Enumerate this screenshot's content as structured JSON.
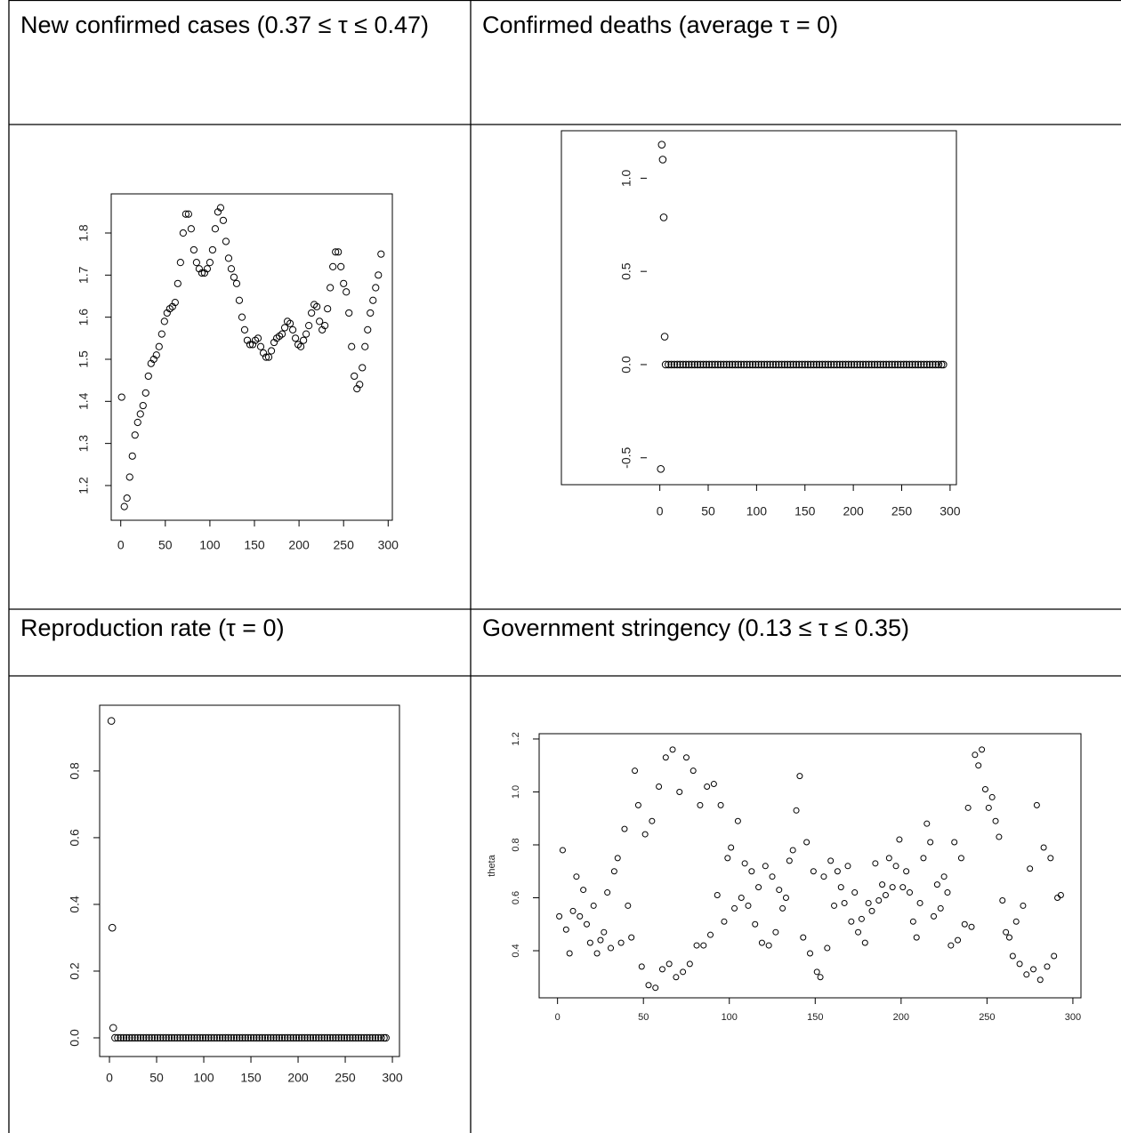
{
  "table": {
    "cells": [
      "New confirmed cases (0.37 ≤ τ ≤ 0.47)",
      "Confirmed deaths (average τ = 0)",
      "Reproduction rate (τ = 0)",
      "Government stringency (0.13 ≤ τ ≤ 0.35)"
    ]
  },
  "chart_data": [
    {
      "type": "scatter",
      "x": [
        1,
        4,
        7,
        10,
        13,
        16,
        19,
        22,
        25,
        28,
        31,
        34,
        37,
        40,
        43,
        46,
        49,
        52,
        55,
        58,
        61,
        64,
        67,
        70,
        73,
        76,
        79,
        82,
        85,
        88,
        91,
        94,
        97,
        100,
        103,
        106,
        109,
        112,
        115,
        118,
        121,
        124,
        127,
        130,
        133,
        136,
        139,
        142,
        145,
        148,
        151,
        154,
        157,
        160,
        163,
        166,
        169,
        172,
        175,
        178,
        181,
        184,
        187,
        190,
        193,
        196,
        199,
        202,
        205,
        208,
        211,
        214,
        217,
        220,
        223,
        226,
        229,
        232,
        235,
        238,
        241,
        244,
        247,
        250,
        253,
        256,
        259,
        262,
        265,
        268,
        271,
        274,
        277,
        280,
        283,
        286,
        289,
        292
      ],
      "values": [
        1.41,
        1.15,
        1.17,
        1.22,
        1.27,
        1.32,
        1.35,
        1.37,
        1.39,
        1.42,
        1.46,
        1.49,
        1.5,
        1.51,
        1.53,
        1.56,
        1.59,
        1.61,
        1.62,
        1.625,
        1.635,
        1.68,
        1.73,
        1.8,
        1.845,
        1.845,
        1.81,
        1.76,
        1.73,
        1.715,
        1.705,
        1.705,
        1.715,
        1.73,
        1.76,
        1.81,
        1.85,
        1.86,
        1.83,
        1.78,
        1.74,
        1.715,
        1.695,
        1.68,
        1.64,
        1.6,
        1.57,
        1.545,
        1.535,
        1.535,
        1.545,
        1.55,
        1.53,
        1.515,
        1.505,
        1.505,
        1.52,
        1.54,
        1.55,
        1.555,
        1.56,
        1.575,
        1.59,
        1.585,
        1.57,
        1.55,
        1.535,
        1.53,
        1.545,
        1.56,
        1.58,
        1.61,
        1.63,
        1.625,
        1.59,
        1.57,
        1.58,
        1.62,
        1.67,
        1.72,
        1.755,
        1.755,
        1.72,
        1.68,
        1.66,
        1.61,
        1.53,
        1.46,
        1.43,
        1.44,
        1.48,
        1.53,
        1.57,
        1.61,
        1.64,
        1.67,
        1.7,
        1.75
      ],
      "xlim": [
        -10.7,
        304.7
      ],
      "ylim": [
        1.1175,
        1.893
      ],
      "xticks": [
        0,
        50,
        100,
        150,
        200,
        250,
        300
      ],
      "yticks": [
        1.2,
        1.3,
        1.4,
        1.5,
        1.6,
        1.7,
        1.8
      ]
    },
    {
      "type": "scatter",
      "x": [
        1,
        2,
        3,
        4,
        5,
        6,
        9,
        12,
        15,
        18,
        21,
        24,
        27,
        30,
        33,
        36,
        39,
        42,
        45,
        48,
        51,
        54,
        57,
        60,
        63,
        66,
        69,
        72,
        75,
        78,
        81,
        84,
        87,
        90,
        93,
        96,
        99,
        102,
        105,
        108,
        111,
        114,
        117,
        120,
        123,
        126,
        129,
        132,
        135,
        138,
        141,
        144,
        147,
        150,
        153,
        156,
        159,
        162,
        165,
        168,
        171,
        174,
        177,
        180,
        183,
        186,
        189,
        192,
        195,
        198,
        201,
        204,
        207,
        210,
        213,
        216,
        219,
        222,
        225,
        228,
        231,
        234,
        237,
        240,
        243,
        246,
        249,
        252,
        255,
        258,
        261,
        264,
        267,
        270,
        273,
        276,
        279,
        282,
        285,
        288,
        291,
        293
      ],
      "values": [
        -0.56,
        1.18,
        1.1,
        0.79,
        0.15,
        0,
        0,
        0,
        0,
        0,
        0,
        0,
        0,
        0,
        0,
        0,
        0,
        0,
        0,
        0,
        0,
        0,
        0,
        0,
        0,
        0,
        0,
        0,
        0,
        0,
        0,
        0,
        0,
        0,
        0,
        0,
        0,
        0,
        0,
        0,
        0,
        0,
        0,
        0,
        0,
        0,
        0,
        0,
        0,
        0,
        0,
        0,
        0,
        0,
        0,
        0,
        0,
        0,
        0,
        0,
        0,
        0,
        0,
        0,
        0,
        0,
        0,
        0,
        0,
        0,
        0,
        0,
        0,
        0,
        0,
        0,
        0,
        0,
        0,
        0,
        0,
        0,
        0,
        0,
        0,
        0,
        0,
        0,
        0,
        0,
        0,
        0,
        0,
        0,
        0,
        0,
        0,
        0,
        0,
        0,
        0,
        0
      ],
      "xlim": [
        -10.7,
        304.7
      ],
      "ylim": [
        -0.63,
        1.25
      ],
      "xticks": [
        0,
        50,
        100,
        150,
        200,
        250,
        300
      ],
      "yticks": [
        {
          "value": -0.5,
          "label": "-0.5"
        },
        {
          "value": 0,
          "label": "0.0"
        },
        0.5,
        {
          "value": 1,
          "label": "1.0"
        }
      ]
    },
    {
      "type": "scatter",
      "x": [
        2,
        3,
        4,
        6,
        9,
        12,
        15,
        18,
        21,
        24,
        27,
        30,
        33,
        36,
        39,
        42,
        45,
        48,
        51,
        54,
        57,
        60,
        63,
        66,
        69,
        72,
        75,
        78,
        81,
        84,
        87,
        90,
        93,
        96,
        99,
        102,
        105,
        108,
        111,
        114,
        117,
        120,
        123,
        126,
        129,
        132,
        135,
        138,
        141,
        144,
        147,
        150,
        153,
        156,
        159,
        162,
        165,
        168,
        171,
        174,
        177,
        180,
        183,
        186,
        189,
        192,
        195,
        198,
        201,
        204,
        207,
        210,
        213,
        216,
        219,
        222,
        225,
        228,
        231,
        234,
        237,
        240,
        243,
        246,
        249,
        252,
        255,
        258,
        261,
        264,
        267,
        270,
        273,
        276,
        279,
        282,
        285,
        288,
        291,
        293
      ],
      "values": [
        0.95,
        0.33,
        0.03,
        0,
        0,
        0,
        0,
        0,
        0,
        0,
        0,
        0,
        0,
        0,
        0,
        0,
        0,
        0,
        0,
        0,
        0,
        0,
        0,
        0,
        0,
        0,
        0,
        0,
        0,
        0,
        0,
        0,
        0,
        0,
        0,
        0,
        0,
        0,
        0,
        0,
        0,
        0,
        0,
        0,
        0,
        0,
        0,
        0,
        0,
        0,
        0,
        0,
        0,
        0,
        0,
        0,
        0,
        0,
        0,
        0,
        0,
        0,
        0,
        0,
        0,
        0,
        0,
        0,
        0,
        0,
        0,
        0,
        0,
        0,
        0,
        0,
        0,
        0,
        0,
        0,
        0,
        0,
        0,
        0,
        0,
        0,
        0,
        0,
        0,
        0,
        0,
        0,
        0,
        0,
        0,
        0,
        0,
        0,
        0,
        0
      ],
      "xlim": [
        -10.4,
        307.5
      ],
      "ylim": [
        -0.056,
        0.997
      ],
      "xticks": [
        0,
        50,
        100,
        150,
        200,
        250,
        300
      ],
      "yticks": [
        {
          "value": 0,
          "label": "0.0"
        },
        0.2,
        0.4,
        0.6,
        0.8
      ]
    },
    {
      "type": "scatter",
      "ylabel": "theta",
      "x": [
        1,
        3,
        5,
        7,
        9,
        11,
        13,
        15,
        17,
        19,
        21,
        23,
        25,
        27,
        29,
        31,
        33,
        35,
        37,
        39,
        41,
        43,
        45,
        47,
        49,
        51,
        53,
        55,
        57,
        59,
        61,
        63,
        65,
        67,
        69,
        71,
        73,
        75,
        77,
        79,
        81,
        83,
        85,
        87,
        89,
        91,
        93,
        95,
        97,
        99,
        101,
        103,
        105,
        107,
        109,
        111,
        113,
        115,
        117,
        119,
        121,
        123,
        125,
        127,
        129,
        131,
        133,
        135,
        137,
        139,
        141,
        143,
        145,
        147,
        149,
        151,
        153,
        155,
        157,
        159,
        161,
        163,
        165,
        167,
        169,
        171,
        173,
        175,
        177,
        179,
        181,
        183,
        185,
        187,
        189,
        191,
        193,
        195,
        197,
        199,
        201,
        203,
        205,
        207,
        209,
        211,
        213,
        215,
        217,
        219,
        221,
        223,
        225,
        227,
        229,
        231,
        233,
        235,
        237,
        239,
        241,
        243,
        245,
        247,
        249,
        251,
        253,
        255,
        257,
        259,
        261,
        263,
        265,
        267,
        269,
        271,
        273,
        275,
        277,
        279,
        281,
        283,
        285,
        287,
        289,
        291,
        293
      ],
      "values": [
        0.53,
        0.78,
        0.48,
        0.39,
        0.55,
        0.68,
        0.53,
        0.63,
        0.5,
        0.43,
        0.57,
        0.39,
        0.44,
        0.47,
        0.62,
        0.41,
        0.7,
        0.75,
        0.43,
        0.86,
        0.57,
        0.45,
        1.08,
        0.95,
        0.34,
        0.84,
        0.27,
        0.89,
        0.26,
        1.02,
        0.33,
        1.13,
        0.35,
        1.16,
        0.3,
        1.0,
        0.32,
        1.13,
        0.35,
        1.08,
        0.42,
        0.95,
        0.42,
        1.02,
        0.46,
        1.03,
        0.61,
        0.95,
        0.51,
        0.75,
        0.79,
        0.56,
        0.89,
        0.6,
        0.73,
        0.57,
        0.7,
        0.5,
        0.64,
        0.43,
        0.72,
        0.42,
        0.68,
        0.47,
        0.63,
        0.56,
        0.6,
        0.74,
        0.78,
        0.93,
        1.06,
        0.45,
        0.81,
        0.39,
        0.7,
        0.32,
        0.3,
        0.68,
        0.41,
        0.74,
        0.57,
        0.7,
        0.64,
        0.58,
        0.72,
        0.51,
        0.62,
        0.47,
        0.52,
        0.43,
        0.58,
        0.55,
        0.73,
        0.59,
        0.65,
        0.61,
        0.75,
        0.64,
        0.72,
        0.82,
        0.64,
        0.7,
        0.62,
        0.51,
        0.45,
        0.58,
        0.75,
        0.88,
        0.81,
        0.53,
        0.65,
        0.56,
        0.68,
        0.62,
        0.42,
        0.81,
        0.44,
        0.75,
        0.5,
        0.94,
        0.49,
        1.14,
        1.1,
        1.16,
        1.01,
        0.94,
        0.98,
        0.89,
        0.83,
        0.59,
        0.47,
        0.45,
        0.38,
        0.51,
        0.35,
        0.57,
        0.31,
        0.71,
        0.33,
        0.95,
        0.29,
        0.79,
        0.34,
        0.75,
        0.38,
        0.6,
        0.61
      ],
      "xlim": [
        -10.7,
        304.7
      ],
      "ylim": [
        0.222,
        1.22
      ],
      "xticks": [
        0,
        50,
        100,
        150,
        200,
        250,
        300
      ],
      "yticks": [
        0.4,
        0.6,
        0.8,
        {
          "value": 1,
          "label": "1.0"
        },
        1.2
      ]
    }
  ]
}
